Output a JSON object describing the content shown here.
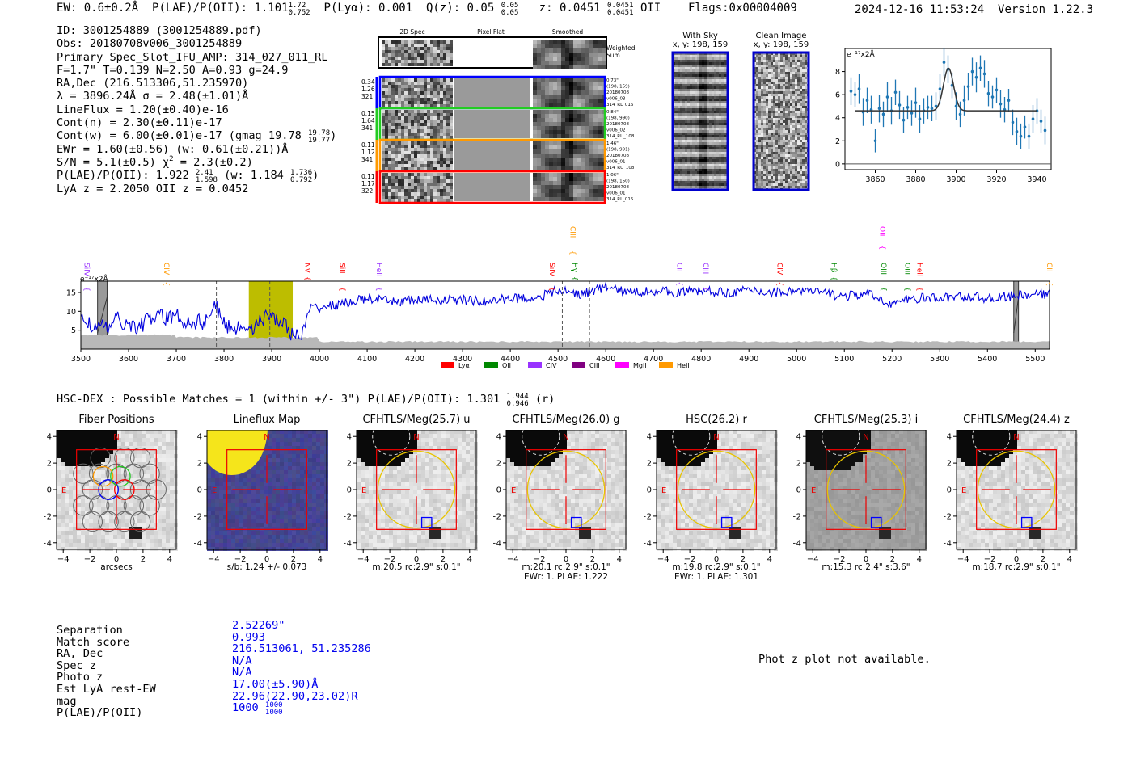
{
  "header": {
    "ew": "EW: 0.6±0.2Å",
    "plae_label": "P(LAE)/P(OII): 1.101",
    "plae_hi": "1.72",
    "plae_lo": "0.752",
    "plya": "P(Lyα): 0.001",
    "qz": "Q(z): 0.05",
    "qz_hi": "0.05",
    "qz_lo": "0.05",
    "z_label": "z: 0.0451",
    "z_hi": "0.0451",
    "z_lo": "0.0451",
    "z_line": "OII",
    "flags": "Flags:0x00004009",
    "datetime": "2024-12-16 11:53:24",
    "version": "Version 1.22.3"
  },
  "info": {
    "id": "ID: 3001254889 (3001254889.pdf)",
    "obs": "Obs: 20180708v006_3001254889",
    "primary": "Primary Spec_Slot_IFU_AMP: 314_027_011_RL",
    "params": "F=1.7\"  T=0.139  N=2.50  A=0.93  g=24.9",
    "radec": "RA,Dec (216.513306,51.235970)",
    "lambda": "λ = 3896.24Å   σ = 2.48(±1.01)Å",
    "lineflux": "LineFlux = 1.20(±0.40)e-16",
    "contn": "Cont(n) = 2.30(±0.11)e-17",
    "contw": "Cont(w) = 6.00(±0.01)e-17 (gmag 19.78",
    "contw_hi": "19.78",
    "contw_lo": "19.77",
    "ewr": "EWr = 1.60(±0.56) (w: 0.61(±0.21))Å",
    "sn": "S/N = 5.1(±0.5)  χ",
    "sn_sup": "2",
    "sn_rest": " = 2.3(±0.2)",
    "plae": "P(LAE)/P(OII): 1.922",
    "plae_hi": "2.41",
    "plae_lo": "1.598",
    "plae_w": "(w: 1.184",
    "plae_w_hi": "1.736",
    "plae_w_lo": "0.792",
    "lyaz": "LyA z = 2.2050   OII z = 0.0452"
  },
  "spec2d": {
    "col_labels": [
      "2D Spec",
      "Pixel Flat",
      "Smoothed"
    ],
    "weighted_sum": "Weighted Sum",
    "rows": [
      {
        "left": [
          "0.34",
          "1.26",
          "321"
        ],
        "right": [
          "0.73\"",
          "(198, 159)",
          "20180708",
          "v006_03",
          "314_RL_016"
        ],
        "color": "#0000ff"
      },
      {
        "left": [
          "0.15",
          "1.64",
          "341"
        ],
        "right": [
          "0.84\"",
          "(198, 990)",
          "20180708",
          "v006_02",
          "314_RU_108"
        ],
        "color": "#22cc22"
      },
      {
        "left": [
          "0.11",
          "1.12",
          "341"
        ],
        "right": [
          "1.46\"",
          "(198, 991)",
          "20180708",
          "v006_01",
          "314_RU_108"
        ],
        "color": "#ff9900"
      },
      {
        "left": [
          "0.11",
          "1.17",
          "322"
        ],
        "right": [
          "1.06\"",
          "(198, 150)",
          "20180708",
          "v006_01",
          "314_RL_015"
        ],
        "color": "#ff0000"
      }
    ]
  },
  "withsky": {
    "title": "With Sky",
    "coords": "x, y: 198, 159"
  },
  "clean": {
    "title": "Clean Image",
    "coords": "x, y: 198, 159"
  },
  "zoom_chart": {
    "type": "scatter",
    "ylabel": "e⁻¹⁷x2Å",
    "xlim": [
      3845,
      3947
    ],
    "ylim": [
      -0.5,
      10
    ],
    "xticks": [
      3860,
      3880,
      3900,
      3920,
      3940
    ],
    "yticks": [
      0,
      2,
      4,
      6,
      8
    ],
    "x": [
      3848,
      3850,
      3852,
      3854,
      3856,
      3858,
      3860,
      3862,
      3864,
      3866,
      3868,
      3870,
      3872,
      3874,
      3876,
      3878,
      3880,
      3882,
      3884,
      3886,
      3888,
      3890,
      3892,
      3894,
      3896,
      3898,
      3900,
      3902,
      3904,
      3906,
      3908,
      3910,
      3912,
      3914,
      3916,
      3918,
      3920,
      3922,
      3924,
      3926,
      3928,
      3930,
      3932,
      3934,
      3936,
      3938,
      3940,
      3942,
      3944
    ],
    "y": [
      6.3,
      6.0,
      6.5,
      4.5,
      5.5,
      4.7,
      2.0,
      4.8,
      4.3,
      5.8,
      4.6,
      6.2,
      5.1,
      3.8,
      4.9,
      4.4,
      5.3,
      3.9,
      4.6,
      4.9,
      4.8,
      5.0,
      6.5,
      8.8,
      8.2,
      6.8,
      5.0,
      4.3,
      5.5,
      6.7,
      8.0,
      7.5,
      8.3,
      7.8,
      6.1,
      5.8,
      6.4,
      5.2,
      4.7,
      5.5,
      3.6,
      2.8,
      2.4,
      3.2,
      2.4,
      3.9,
      4.6,
      3.7,
      2.9
    ],
    "err": [
      1.2,
      1.1,
      1.3,
      1.2,
      1.1,
      1.2,
      1.0,
      1.2,
      1.1,
      1.3,
      1.2,
      1.1,
      1.2,
      1.1,
      1.0,
      1.1,
      1.3,
      1.2,
      1.1,
      1.0,
      1.1,
      1.2,
      1.3,
      1.2,
      1.2,
      1.1,
      1.2,
      1.1,
      1.3,
      1.2,
      1.2,
      1.3,
      1.1,
      1.2,
      1.1,
      1.0,
      1.1,
      1.2,
      1.1,
      1.0,
      1.1,
      1.2,
      1.1,
      1.0,
      1.1,
      1.2,
      1.1,
      1.0,
      1.2
    ],
    "model": {
      "continuum": 4.6,
      "amp": 3.7,
      "center": 3896.2,
      "sigma": 2.48
    }
  },
  "full_spectrum": {
    "type": "line",
    "ylabel": "e⁻¹⁷x2Å",
    "xlim": [
      3500,
      5530
    ],
    "ylim": [
      0,
      18
    ],
    "xticks": [
      3500,
      3600,
      3700,
      3800,
      3900,
      4000,
      4100,
      4200,
      4300,
      4400,
      4500,
      4600,
      4700,
      4800,
      4900,
      5000,
      5100,
      5200,
      5300,
      5400,
      5500
    ],
    "yticks": [
      5,
      10,
      15
    ],
    "highlight": [
      3852,
      3944
    ],
    "gray_bands": [
      [
        3535,
        3555
      ],
      [
        5455,
        5465
      ]
    ],
    "dashed": [
      3784,
      3896,
      4509,
      4566
    ],
    "x_knots": [
      3500,
      3520,
      3540,
      3560,
      3580,
      3600,
      3620,
      3640,
      3660,
      3680,
      3700,
      3720,
      3740,
      3760,
      3780,
      3800,
      3820,
      3840,
      3860,
      3880,
      3900,
      3920,
      3940,
      3960,
      3980,
      4000,
      4050,
      4100,
      4150,
      4200,
      4250,
      4300,
      4350,
      4400,
      4450,
      4500,
      4550,
      4600,
      4650,
      4700,
      4750,
      4800,
      4850,
      4900,
      4950,
      5000,
      5050,
      5100,
      5150,
      5200,
      5250,
      5300,
      5350,
      5400,
      5450,
      5500,
      5530
    ],
    "y_knots": [
      9.0,
      6.5,
      5.5,
      6.0,
      8.0,
      6.0,
      6.0,
      7.5,
      9.0,
      8.0,
      9.0,
      7.0,
      7.5,
      7.0,
      12.0,
      6.5,
      5.5,
      6.0,
      6.0,
      7.5,
      9.5,
      7.0,
      4.5,
      2.5,
      10.0,
      11.0,
      12.0,
      13.5,
      12.5,
      13.0,
      13.0,
      13.0,
      12.5,
      13.5,
      13.5,
      15.5,
      14.5,
      16.5,
      15.0,
      15.5,
      15.0,
      15.5,
      15.0,
      15.5,
      15.0,
      15.5,
      15.0,
      14.0,
      14.5,
      12.0,
      13.5,
      13.5,
      14.0,
      13.5,
      14.0,
      14.5,
      14.5
    ],
    "noise_level": 3.2,
    "lines": [
      {
        "label": "SiIV",
        "x": 3513,
        "color": "#9933ff",
        "row": 0
      },
      {
        "label": "CIV",
        "x": 3680,
        "color": "#ff9900",
        "row": 0
      },
      {
        "label": "NV",
        "x": 3975,
        "color": "#ff0000",
        "row": 0
      },
      {
        "label": "SiII",
        "x": 4048,
        "color": "#ff0000",
        "row": 0
      },
      {
        "label": "HeII",
        "x": 4125,
        "color": "#9933ff",
        "row": 0
      },
      {
        "label": "SiIV",
        "x": 4488,
        "color": "#ff0000",
        "row": 0
      },
      {
        "label": "CIII",
        "x": 4531,
        "color": "#ff9900",
        "row": 1
      },
      {
        "label": "Hγ",
        "x": 4535,
        "color": "#008800",
        "row": 0
      },
      {
        "label": "CII",
        "x": 4755,
        "color": "#9933ff",
        "row": 0
      },
      {
        "label": "CIII",
        "x": 4810,
        "color": "#9933ff",
        "row": 0
      },
      {
        "label": "CIV",
        "x": 4965,
        "color": "#ff0000",
        "row": 0
      },
      {
        "label": "Hβ",
        "x": 5078,
        "color": "#008800",
        "row": 0
      },
      {
        "label": "OII",
        "x": 5180,
        "color": "#ff00ff",
        "row": 1
      },
      {
        "label": "OIII",
        "x": 5183,
        "color": "#008800",
        "row": 0
      },
      {
        "label": "OIII",
        "x": 5233,
        "color": "#008800",
        "row": 0
      },
      {
        "label": "HeII",
        "x": 5258,
        "color": "#ff0000",
        "row": 0
      },
      {
        "label": "CII",
        "x": 5530,
        "color": "#ff9900",
        "row": 0
      }
    ],
    "legend": [
      {
        "label": "Lyα",
        "color": "#ff0000"
      },
      {
        "label": "OII",
        "color": "#008800"
      },
      {
        "label": "CIV",
        "color": "#9933ff"
      },
      {
        "label": "CIII",
        "color": "#800080"
      },
      {
        "label": "MgII",
        "color": "#ff00ff"
      },
      {
        "label": "HeII",
        "color": "#ff9900"
      }
    ]
  },
  "hsc": {
    "title_prefix": "HSC-DEX : Possible Matches = 1 (within +/- 3\")  P(LAE)/P(OII): 1.301",
    "title_hi": "1.944",
    "title_lo": "0.946",
    "title_suffix": "(r)"
  },
  "cutouts": {
    "xticks": [
      "−4",
      "−2",
      "0",
      "2",
      "4"
    ],
    "yticks": [
      "4",
      "2",
      "0",
      "−2",
      "−4"
    ],
    "panels": [
      {
        "title": "Fiber Positions",
        "cap1": "arcsecs",
        "cap2": ""
      },
      {
        "title": "Lineflux Map",
        "cap1": "s/b: 1.24 +/- 0.073",
        "cap2": ""
      },
      {
        "title": "CFHTLS/Meg(25.7) u",
        "cap1": "m:20.5 rc:2.9\"  s:0.1\"",
        "cap2": ""
      },
      {
        "title": "CFHTLS/Meg(26.0) g",
        "cap1": "m:20.1 rc:2.9\"  s:0.1\"",
        "cap2": "EWr: 1. PLAE: 1.222"
      },
      {
        "title": "HSC(26.2) r",
        "cap1": "m:19.8 rc:2.9\"  s:0.1\"",
        "cap2": "EWr: 1. PLAE: 1.301"
      },
      {
        "title": "CFHTLS/Meg(25.3) i",
        "cap1": "m:15.3  rc:2.4\"  s:3.6\"",
        "cap2": ""
      },
      {
        "title": "CFHTLS/Meg(24.4) z",
        "cap1": "m:18.7 rc:2.9\"  s:0.1\"",
        "cap2": ""
      }
    ]
  },
  "match": {
    "labels": [
      "Separation",
      "Match score",
      "RA, Dec",
      "Spec z",
      "Photo z",
      "Est LyA rest-EW",
      "mag",
      "P(LAE)/P(OII)"
    ],
    "values": [
      "2.52269\"",
      "0.993",
      "216.513061, 51.235286",
      "N/A",
      "N/A",
      "17.00(±5.90)Å",
      "22.96(22.90,23.02)R",
      "1000"
    ],
    "plae_hi": "1000",
    "plae_lo": "1000"
  },
  "photz": "Phot z plot not available."
}
